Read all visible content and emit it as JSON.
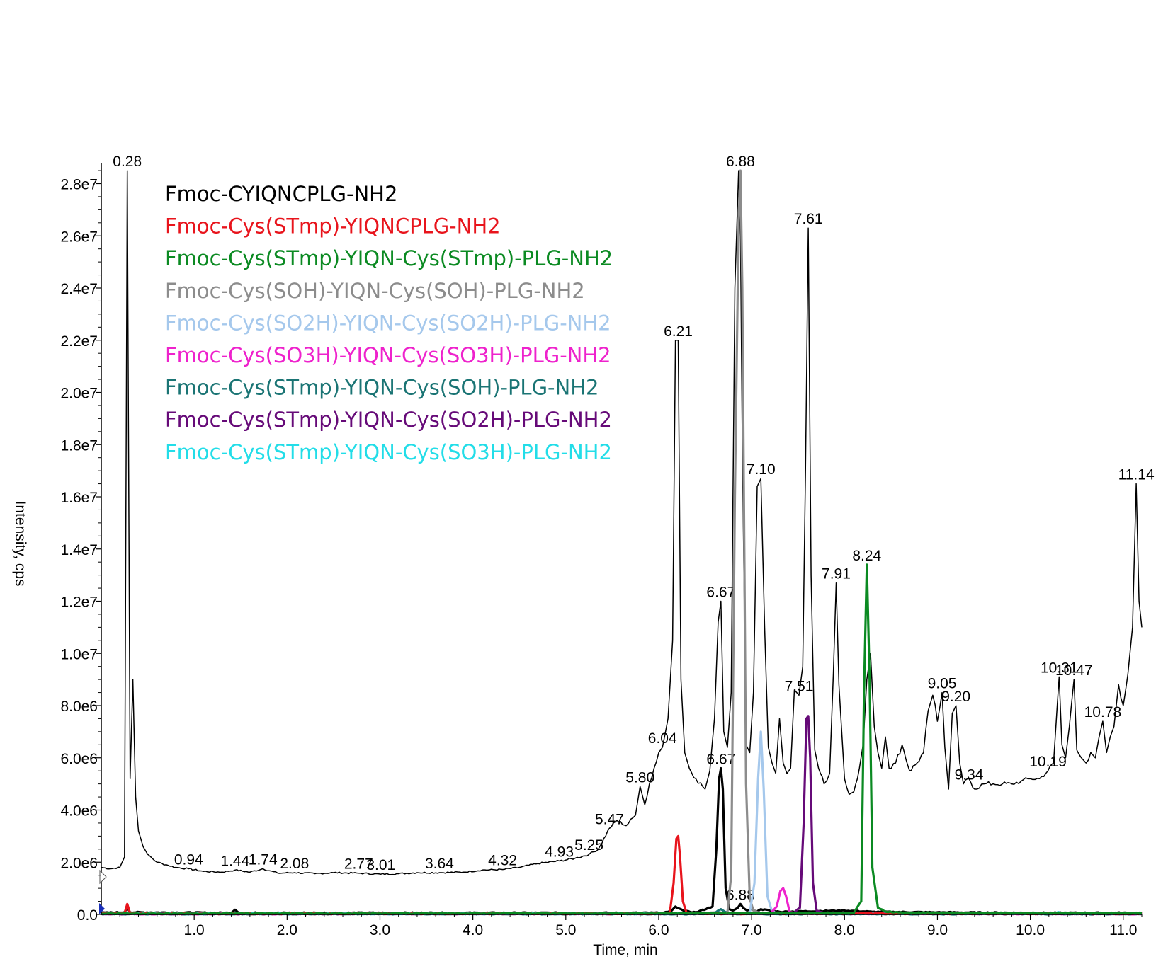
{
  "chart_data": {
    "type": "line",
    "title": "",
    "xlabel": "Time, min",
    "ylabel": "Intensity, cps",
    "xlim": [
      0,
      11.2
    ],
    "ylim": [
      0,
      28800000.0
    ],
    "grid": false,
    "legend_position": "top-left",
    "x_ticks": [
      {
        "value": 1.0,
        "label": "1.0"
      },
      {
        "value": 2.0,
        "label": "2.0"
      },
      {
        "value": 3.0,
        "label": "3.0"
      },
      {
        "value": 4.0,
        "label": "4.0"
      },
      {
        "value": 5.0,
        "label": "5.0"
      },
      {
        "value": 6.0,
        "label": "6.0"
      },
      {
        "value": 7.0,
        "label": "7.0"
      },
      {
        "value": 8.0,
        "label": "8.0"
      },
      {
        "value": 9.0,
        "label": "9.0"
      },
      {
        "value": 10.0,
        "label": "10.0"
      },
      {
        "value": 11.0,
        "label": "11.0"
      }
    ],
    "y_ticks": [
      {
        "value": 0,
        "label": "0.0"
      },
      {
        "value": 2000000,
        "label": "2.0e6"
      },
      {
        "value": 4000000,
        "label": "4.0e6"
      },
      {
        "value": 6000000,
        "label": "6.0e6"
      },
      {
        "value": 8000000,
        "label": "8.0e6"
      },
      {
        "value": 10000000,
        "label": "1.0e7"
      },
      {
        "value": 12000000,
        "label": "1.2e7"
      },
      {
        "value": 14000000,
        "label": "1.4e7"
      },
      {
        "value": 16000000,
        "label": "1.6e7"
      },
      {
        "value": 18000000,
        "label": "1.8e7"
      },
      {
        "value": 20000000,
        "label": "2.0e7"
      },
      {
        "value": 22000000,
        "label": "2.2e7"
      },
      {
        "value": 24000000,
        "label": "2.4e7"
      },
      {
        "value": 26000000,
        "label": "2.6e7"
      },
      {
        "value": 28000000,
        "label": "2.8e7"
      }
    ],
    "series": [
      {
        "name": "Fmoc-CYIQNCPLG-NH2",
        "color": "#000000",
        "x": [
          0.0,
          0.1,
          0.2,
          0.25,
          0.28,
          0.31,
          0.34,
          0.37,
          0.4,
          0.45,
          0.5,
          0.6,
          0.7,
          0.8,
          0.94,
          1.1,
          1.3,
          1.44,
          1.6,
          1.74,
          1.9,
          2.08,
          2.3,
          2.5,
          2.77,
          3.01,
          3.2,
          3.4,
          3.64,
          3.9,
          4.1,
          4.32,
          4.5,
          4.7,
          4.93,
          5.1,
          5.25,
          5.35,
          5.47,
          5.55,
          5.65,
          5.75,
          5.8,
          5.85,
          5.9,
          6.0,
          6.04,
          6.1,
          6.15,
          6.18,
          6.21,
          6.24,
          6.28,
          6.33,
          6.4,
          6.5,
          6.55,
          6.6,
          6.64,
          6.67,
          6.7,
          6.74,
          6.78,
          6.82,
          6.86,
          6.88,
          6.9,
          6.94,
          6.98,
          7.02,
          7.06,
          7.1,
          7.14,
          7.18,
          7.22,
          7.26,
          7.3,
          7.34,
          7.38,
          7.42,
          7.46,
          7.51,
          7.55,
          7.58,
          7.61,
          7.64,
          7.68,
          7.72,
          7.78,
          7.84,
          7.88,
          7.91,
          7.94,
          8.0,
          8.05,
          8.1,
          8.16,
          8.2,
          8.24,
          8.28,
          8.32,
          8.36,
          8.4,
          8.44,
          8.48,
          8.55,
          8.62,
          8.7,
          8.78,
          8.85,
          8.9,
          8.95,
          9.0,
          9.05,
          9.08,
          9.12,
          9.16,
          9.2,
          9.24,
          9.28,
          9.34,
          9.4,
          9.5,
          9.6,
          9.7,
          9.8,
          9.9,
          10.0,
          10.1,
          10.19,
          10.25,
          10.31,
          10.34,
          10.38,
          10.42,
          10.47,
          10.5,
          10.55,
          10.6,
          10.65,
          10.7,
          10.74,
          10.78,
          10.82,
          10.86,
          10.9,
          10.95,
          11.0,
          11.05,
          11.1,
          11.14,
          11.17,
          11.2
        ],
        "y": [
          1800000,
          1750000,
          1800000,
          2200000,
          28500000,
          5200000,
          9000000,
          4500000,
          3200000,
          2600000,
          2300000,
          2000000,
          1900000,
          1800000,
          1750000,
          1650000,
          1620000,
          1700000,
          1620000,
          1750000,
          1580000,
          1600000,
          1560000,
          1600000,
          1580000,
          1540000,
          1560000,
          1600000,
          1600000,
          1620000,
          1700000,
          1720000,
          1800000,
          1950000,
          2050000,
          2150000,
          2300000,
          2500000,
          3300000,
          3600000,
          3400000,
          3800000,
          4900000,
          4200000,
          5000000,
          6200000,
          6400000,
          7500000,
          10500000,
          22000000,
          22000000,
          9000000,
          6200000,
          5600000,
          5200000,
          4800000,
          5500000,
          7500000,
          11200000,
          12000000,
          7000000,
          6400000,
          8500000,
          24000000,
          28500000,
          26000000,
          18000000,
          6500000,
          6200000,
          8500000,
          16400000,
          16700000,
          11000000,
          6400000,
          5800000,
          5400000,
          7500000,
          5800000,
          5400000,
          5600000,
          8600000,
          8400000,
          9500000,
          17000000,
          26300000,
          13000000,
          6300000,
          5600000,
          5000000,
          5400000,
          9200000,
          12700000,
          8800000,
          5200000,
          4600000,
          4700000,
          5600000,
          6500000,
          9000000,
          10000000,
          7200000,
          6200000,
          5600000,
          6800000,
          5600000,
          5800000,
          6500000,
          5500000,
          5800000,
          6200000,
          7800000,
          8400000,
          7400000,
          8500000,
          6400000,
          4800000,
          7700000,
          8000000,
          5800000,
          5000000,
          5200000,
          4800000,
          5000000,
          5000000,
          5000000,
          5000000,
          5100000,
          5200000,
          5200000,
          5500000,
          5800000,
          9100000,
          6500000,
          6000000,
          7200000,
          9000000,
          6300000,
          6000000,
          5800000,
          6200000,
          6000000,
          6800000,
          7400000,
          6200000,
          6800000,
          7200000,
          8800000,
          8000000,
          9200000,
          11000000,
          16500000,
          12000000,
          11000000
        ]
      },
      {
        "name": "Fmoc-Cys(STmp)-YIQNCPLG-NH2",
        "color": "#e8141c",
        "x": [
          0.0,
          0.25,
          0.28,
          0.31,
          0.5,
          6.0,
          6.12,
          6.16,
          6.19,
          6.21,
          6.23,
          6.26,
          6.3,
          6.5,
          11.2
        ],
        "y": [
          30000,
          40000,
          400000,
          40000,
          30000,
          30000,
          60000,
          1200000,
          2900000,
          3000000,
          2200000,
          500000,
          60000,
          30000,
          30000
        ]
      },
      {
        "name": "Fmoc-Cys(STmp)-YIQN-Cys(STmp)-PLG-NH2",
        "color": "#0b8a22",
        "x": [
          0.0,
          3.0,
          6.0,
          8.1,
          8.18,
          8.21,
          8.24,
          8.27,
          8.3,
          8.36,
          8.45,
          8.6,
          9.0,
          10.0,
          11.2
        ],
        "y": [
          30000,
          40000,
          40000,
          60000,
          500000,
          8500000,
          13400000,
          9000000,
          1800000,
          250000,
          100000,
          80000,
          60000,
          50000,
          50000
        ]
      },
      {
        "name": "Fmoc-Cys(SOH)-YIQN-Cys(SOH)-PLG-NH2",
        "color": "#8c8c8c",
        "x": [
          0.0,
          6.0,
          6.74,
          6.78,
          6.82,
          6.86,
          6.88,
          6.9,
          6.94,
          6.98,
          7.02,
          7.1,
          11.2
        ],
        "y": [
          20000,
          20000,
          80000,
          1500000,
          16000000,
          26500000,
          28500000,
          24000000,
          5000000,
          600000,
          150000,
          50000,
          20000
        ]
      },
      {
        "name": "Fmoc-Cys(SO2H)-YIQN-Cys(SO2H)-PLG-NH2",
        "color": "#a5c8ec",
        "x": [
          0.0,
          6.0,
          6.98,
          7.03,
          7.07,
          7.1,
          7.13,
          7.17,
          7.22,
          7.3,
          11.2
        ],
        "y": [
          20000,
          20000,
          60000,
          1200000,
          5200000,
          7000000,
          4800000,
          700000,
          100000,
          30000,
          20000
        ]
      },
      {
        "name": "Fmoc-Cys(SO3H)-YIQN-Cys(SO3H)-PLG-NH2",
        "color": "#ee22cc",
        "x": [
          0.0,
          7.2,
          7.27,
          7.31,
          7.34,
          7.37,
          7.41,
          7.5,
          11.2
        ],
        "y": [
          20000,
          30000,
          300000,
          900000,
          1000000,
          700000,
          80000,
          30000,
          20000
        ]
      },
      {
        "name": "Fmoc-Cys(STmp)-YIQN-Cys(SOH)-PLG-NH2",
        "color": "#1a7474",
        "x": [
          0.0,
          6.5,
          6.6,
          6.64,
          6.67,
          6.7,
          6.74,
          6.8,
          11.2
        ],
        "y": [
          20000,
          20000,
          40000,
          150000,
          200000,
          130000,
          40000,
          20000,
          20000
        ]
      },
      {
        "name": "Fmoc-Cys(STmp)-YIQN-Cys(SO2H)-PLG-NH2",
        "color": "#660a78",
        "x": [
          0.0,
          7.45,
          7.52,
          7.56,
          7.59,
          7.61,
          7.63,
          7.66,
          7.7,
          7.78,
          11.2
        ],
        "y": [
          20000,
          40000,
          250000,
          3500000,
          7500000,
          7600000,
          6000000,
          1200000,
          150000,
          40000,
          20000
        ]
      },
      {
        "name": "Fmoc-Cys(STmp)-YIQN-Cys(SO3H)-PLG-NH2",
        "color": "#22dde8",
        "x": [
          0.0,
          5.0,
          7.0,
          10.26,
          10.3,
          10.34,
          11.2
        ],
        "y": [
          30000,
          30000,
          30000,
          30000,
          90000,
          30000,
          30000
        ]
      },
      {
        "name": "",
        "color": "#000000",
        "x": [
          0.0,
          0.25,
          0.28,
          0.31,
          1.4,
          1.44,
          1.48,
          6.0,
          6.1,
          6.14,
          6.18,
          6.2,
          6.24,
          6.28,
          6.4,
          6.58,
          6.62,
          6.65,
          6.67,
          6.69,
          6.72,
          6.76,
          6.8,
          6.85,
          6.88,
          6.91,
          6.95,
          7.0,
          7.05,
          7.1,
          7.3,
          8.0,
          8.3,
          9.0,
          10.0,
          11.2
        ],
        "y": [
          60000,
          80000,
          250000,
          80000,
          60000,
          180000,
          60000,
          60000,
          100000,
          150000,
          300000,
          250000,
          200000,
          120000,
          80000,
          300000,
          2500000,
          5200000,
          5600000,
          4800000,
          1000000,
          200000,
          150000,
          250000,
          400000,
          250000,
          150000,
          200000,
          100000,
          200000,
          100000,
          150000,
          100000,
          80000,
          60000,
          60000
        ]
      }
    ],
    "peak_labels": [
      {
        "x": 0.28,
        "y": 28500000,
        "text": "0.28"
      },
      {
        "x": 0.94,
        "y": 1750000,
        "text": "0.94"
      },
      {
        "x": 1.44,
        "y": 1700000,
        "text": "1.44"
      },
      {
        "x": 1.74,
        "y": 1750000,
        "text": "1.74"
      },
      {
        "x": 2.08,
        "y": 1600000,
        "text": "2.08"
      },
      {
        "x": 2.77,
        "y": 1580000,
        "text": "2.77"
      },
      {
        "x": 3.01,
        "y": 1540000,
        "text": "3.01"
      },
      {
        "x": 3.64,
        "y": 1600000,
        "text": "3.64"
      },
      {
        "x": 4.32,
        "y": 1720000,
        "text": "4.32"
      },
      {
        "x": 4.93,
        "y": 2050000,
        "text": "4.93"
      },
      {
        "x": 5.25,
        "y": 2300000,
        "text": "5.25"
      },
      {
        "x": 5.47,
        "y": 3300000,
        "text": "5.47"
      },
      {
        "x": 5.8,
        "y": 4900000,
        "text": "5.80"
      },
      {
        "x": 6.04,
        "y": 6400000,
        "text": "6.04"
      },
      {
        "x": 6.21,
        "y": 22000000,
        "text": "6.21"
      },
      {
        "x": 6.67,
        "y": 12000000,
        "text": "6.67"
      },
      {
        "x": 6.67,
        "y": 5600000,
        "text": "6.67"
      },
      {
        "x": 6.88,
        "y": 28500000,
        "text": "6.88"
      },
      {
        "x": 6.88,
        "y": 400000,
        "text": "6.88"
      },
      {
        "x": 7.1,
        "y": 16700000,
        "text": "7.10"
      },
      {
        "x": 7.51,
        "y": 8400000,
        "text": "7.51"
      },
      {
        "x": 7.61,
        "y": 26300000,
        "text": "7.61"
      },
      {
        "x": 7.91,
        "y": 12700000,
        "text": "7.91"
      },
      {
        "x": 8.24,
        "y": 13400000,
        "text": "8.24"
      },
      {
        "x": 9.05,
        "y": 8500000,
        "text": "9.05"
      },
      {
        "x": 9.2,
        "y": 8000000,
        "text": "9.20"
      },
      {
        "x": 9.34,
        "y": 5000000,
        "text": "9.34"
      },
      {
        "x": 10.19,
        "y": 5500000,
        "text": "10.19"
      },
      {
        "x": 10.31,
        "y": 9100000,
        "text": "10.31"
      },
      {
        "x": 10.47,
        "y": 9000000,
        "text": "10.47"
      },
      {
        "x": 10.78,
        "y": 7400000,
        "text": "10.78"
      },
      {
        "x": 11.14,
        "y": 16500000,
        "text": "11.14"
      }
    ]
  }
}
